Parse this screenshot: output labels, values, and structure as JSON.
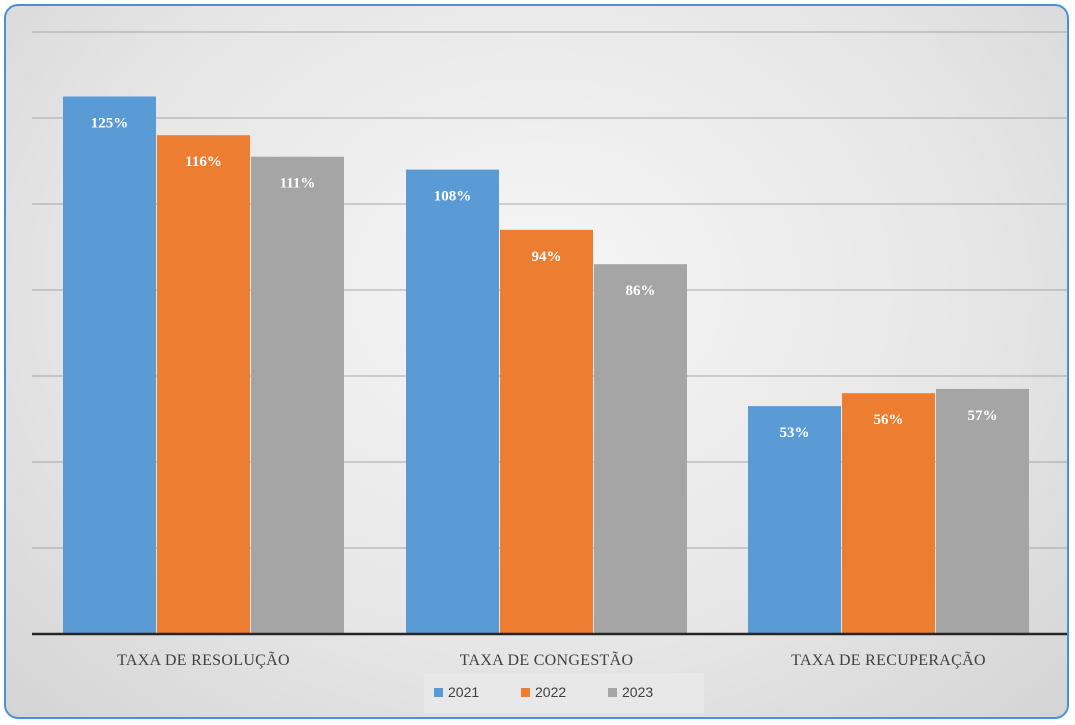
{
  "chart_data": {
    "type": "bar",
    "categories": [
      "TAXA DE RESOLUÇÃO",
      "TAXA DE CONGESTÃO",
      "TAXA DE RECUPERAÇÃO"
    ],
    "series": [
      {
        "name": "2021",
        "values": [
          125,
          108,
          53
        ],
        "labels": [
          "125%",
          "108%",
          "53%"
        ],
        "color": "#5b9bd5"
      },
      {
        "name": "2022",
        "values": [
          116,
          94,
          56
        ],
        "labels": [
          "116%",
          "94%",
          "56%"
        ],
        "color": "#ed7d31"
      },
      {
        "name": "2023",
        "values": [
          111,
          86,
          57
        ],
        "labels": [
          "111%",
          "86%",
          "57%"
        ],
        "color": "#a5a5a5"
      }
    ],
    "ylim": [
      0,
      140
    ],
    "grid": true,
    "legend": "bottom",
    "title": "",
    "xlabel": "",
    "ylabel": ""
  }
}
